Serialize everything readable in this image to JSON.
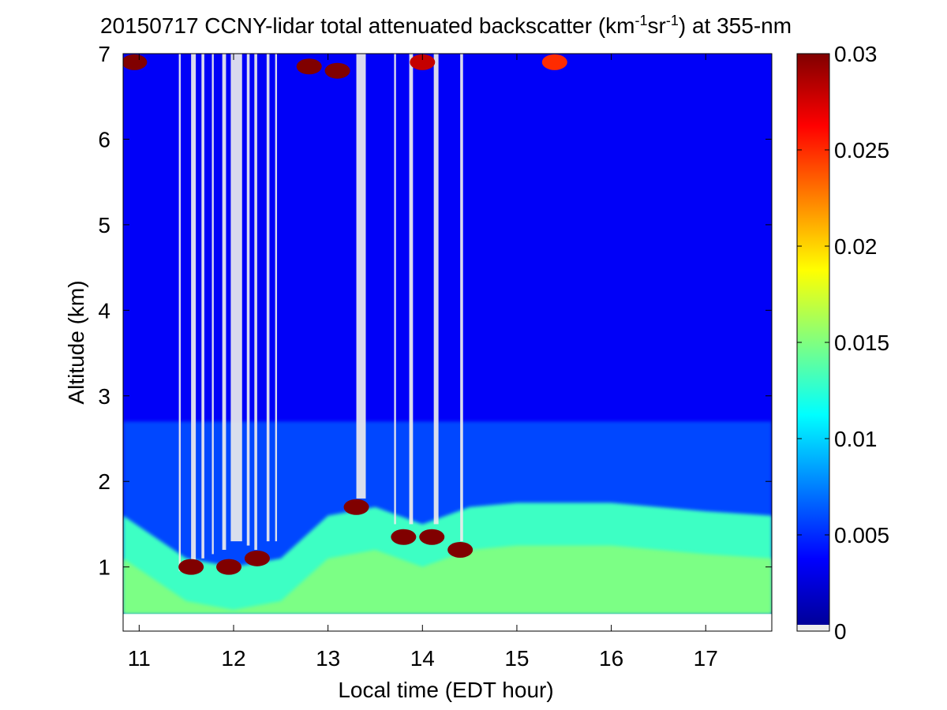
{
  "chart_data": {
    "type": "heatmap",
    "title": {
      "main": "20150717 CCNY-lidar total attenuated backscatter (km",
      "sup1": "-1",
      "mid": "sr",
      "sup2": "-1",
      "end": ") at 355-nm"
    },
    "xlabel": "Local time (EDT hour)",
    "ylabel": "Altitude (km)",
    "xlim": [
      10.83,
      17.7
    ],
    "ylim": [
      0.25,
      7
    ],
    "xticks": [
      11,
      12,
      13,
      14,
      15,
      16,
      17
    ],
    "yticks": [
      1,
      2,
      3,
      4,
      5,
      6,
      7
    ],
    "colorbar": {
      "range": [
        0,
        0.03
      ],
      "ticks": [
        "0",
        "0.005",
        "0.01",
        "0.015",
        "0.02",
        "0.025",
        "0.03"
      ],
      "tick_values": [
        0,
        0.005,
        0.01,
        0.015,
        0.02,
        0.025,
        0.03
      ],
      "colormap": "jet",
      "colors": [
        "#00008f",
        "#0000ff",
        "#0080ff",
        "#00ffff",
        "#80ff80",
        "#ffff00",
        "#ff8000",
        "#ff0000",
        "#800000"
      ],
      "nodata_color": "#ececec"
    },
    "data_min_altitude_km": 0.45,
    "layers": {
      "free_troposphere_value": 0.0035,
      "aerosol_residual_layer_top_km": 2.7,
      "boundary_layer_top_km": [
        {
          "x": 10.83,
          "y": 1.6
        },
        {
          "x": 11.5,
          "y": 1.1
        },
        {
          "x": 12.0,
          "y": 1.0
        },
        {
          "x": 12.5,
          "y": 1.1
        },
        {
          "x": 13.0,
          "y": 1.6
        },
        {
          "x": 13.5,
          "y": 1.7
        },
        {
          "x": 14.0,
          "y": 1.5
        },
        {
          "x": 14.5,
          "y": 1.7
        },
        {
          "x": 15.0,
          "y": 1.75
        },
        {
          "x": 16.0,
          "y": 1.75
        },
        {
          "x": 17.0,
          "y": 1.65
        },
        {
          "x": 17.7,
          "y": 1.6
        }
      ],
      "boundary_layer_value": 0.013
    },
    "cloud_signal_gaps": [
      {
        "x": 11.42,
        "width": 0.02,
        "y_bottom": 0.95
      },
      {
        "x": 11.55,
        "width": 0.05,
        "y_bottom": 1.05
      },
      {
        "x": 11.66,
        "width": 0.03,
        "y_bottom": 1.1
      },
      {
        "x": 11.77,
        "width": 0.02,
        "y_bottom": 1.15
      },
      {
        "x": 11.88,
        "width": 0.04,
        "y_bottom": 1.2
      },
      {
        "x": 11.97,
        "width": 0.12,
        "y_bottom": 1.3
      },
      {
        "x": 12.14,
        "width": 0.03,
        "y_bottom": 1.25
      },
      {
        "x": 12.22,
        "width": 0.03,
        "y_bottom": 1.2
      },
      {
        "x": 12.35,
        "width": 0.03,
        "y_bottom": 1.3
      },
      {
        "x": 12.44,
        "width": 0.02,
        "y_bottom": 1.3
      },
      {
        "x": 13.3,
        "width": 0.1,
        "y_bottom": 1.8
      },
      {
        "x": 13.7,
        "width": 0.02,
        "y_bottom": 1.5
      },
      {
        "x": 13.86,
        "width": 0.04,
        "y_bottom": 1.5
      },
      {
        "x": 14.12,
        "width": 0.05,
        "y_bottom": 1.5
      },
      {
        "x": 14.4,
        "width": 0.03,
        "y_bottom": 1.3
      }
    ],
    "cloud_hotspots": [
      {
        "x": 11.55,
        "y": 1.0,
        "value": 0.03
      },
      {
        "x": 11.95,
        "y": 1.0,
        "value": 0.03
      },
      {
        "x": 12.25,
        "y": 1.1,
        "value": 0.03
      },
      {
        "x": 13.3,
        "y": 1.7,
        "value": 0.03
      },
      {
        "x": 13.8,
        "y": 1.35,
        "value": 0.03
      },
      {
        "x": 14.1,
        "y": 1.35,
        "value": 0.03
      },
      {
        "x": 14.4,
        "y": 1.2,
        "value": 0.03
      },
      {
        "x": 10.95,
        "y": 6.9,
        "value": 0.03
      },
      {
        "x": 12.8,
        "y": 6.85,
        "value": 0.03
      },
      {
        "x": 13.1,
        "y": 6.8,
        "value": 0.03
      },
      {
        "x": 14.0,
        "y": 6.9,
        "value": 0.028
      },
      {
        "x": 15.4,
        "y": 6.9,
        "value": 0.025
      }
    ]
  }
}
